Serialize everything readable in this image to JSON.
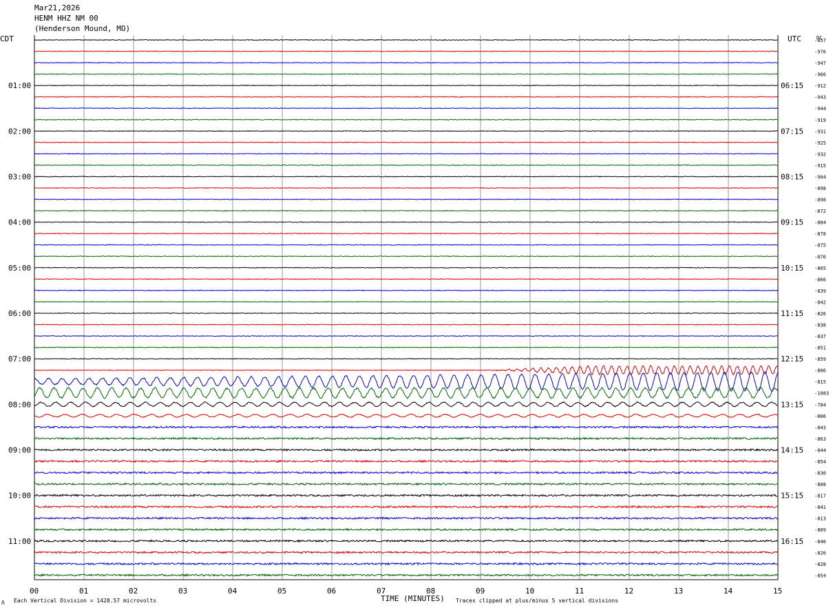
{
  "header": {
    "date": "Mar21,2026",
    "station": "HENM HHZ NM 00",
    "location": "(Henderson Mound, MO)"
  },
  "labels": {
    "left_tz": "CDT",
    "right_tz": "UTC",
    "dc": "DC",
    "xlabel": "TIME (MINUTES)",
    "footer_left": "Each Vertical Division = 1428.57 microvolts",
    "footer_right": "Traces clipped at plus/minus 5 vertical divisions",
    "corner": "Λ"
  },
  "chart_data": {
    "type": "line",
    "xlabel": "TIME (MINUTES)",
    "x_range": [
      0,
      15
    ],
    "x_ticks": [
      "00",
      "01",
      "02",
      "03",
      "04",
      "05",
      "06",
      "07",
      "08",
      "09",
      "10",
      "11",
      "12",
      "13",
      "14",
      "15"
    ],
    "grid": true,
    "trace_colors": [
      "#000000",
      "#e00000",
      "#0000e0",
      "#006400"
    ],
    "hour_labels_left": [
      "01:00",
      "02:00",
      "03:00",
      "04:00",
      "05:00",
      "06:00",
      "07:00",
      "08:00",
      "09:00",
      "10:00",
      "11:00"
    ],
    "hour_labels_right": [
      "06:15",
      "07:15",
      "08:15",
      "09:15",
      "10:15",
      "11:15",
      "12:15",
      "13:15",
      "14:15",
      "15:15",
      "16:15"
    ],
    "dc_offsets": [
      "-857",
      "-976",
      "-947",
      "-966",
      "-912",
      "-943",
      "-944",
      "-919",
      "-931",
      "-925",
      "-932",
      "-915",
      "-904",
      "-898",
      "-898",
      "-872",
      "-884",
      "-878",
      "-875",
      "-870",
      "-865",
      "-866",
      "-839",
      "-842",
      "-826",
      "-838",
      "-837",
      "-851",
      "-859",
      "-806",
      "-815",
      "-1083",
      "-784",
      "-806",
      "-843",
      "-863",
      "-844",
      "-854",
      "-830",
      "-808",
      "-817",
      "-841",
      "-813",
      "-809",
      "-846",
      "-826",
      "-828",
      "-854"
    ]
  }
}
